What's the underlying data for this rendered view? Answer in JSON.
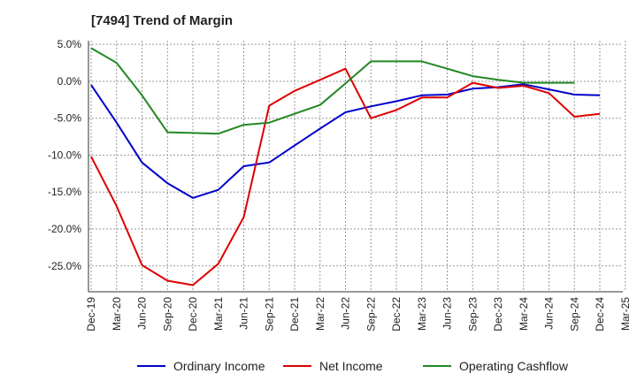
{
  "chart_data": {
    "type": "line",
    "title": "[7494]  Trend of Margin",
    "xlabel": "",
    "ylabel": "",
    "x": [
      "Dec-19",
      "Mar-20",
      "Jun-20",
      "Sep-20",
      "Dec-20",
      "Mar-21",
      "Jun-21",
      "Sep-21",
      "Dec-21",
      "Mar-22",
      "Jun-22",
      "Sep-22",
      "Dec-22",
      "Mar-23",
      "Jun-23",
      "Sep-23",
      "Dec-23",
      "Mar-24",
      "Jun-24",
      "Sep-24",
      "Dec-24",
      "Mar-25"
    ],
    "ylim": [
      -28.5,
      5.5
    ],
    "yticks": [
      5,
      0,
      -5,
      -10,
      -15,
      -20,
      -25
    ],
    "ytick_labels": [
      "5.0%",
      "0.0%",
      "-5.0%",
      "-10.0%",
      "-15.0%",
      "-20.0%",
      "-25.0%"
    ],
    "grid": true,
    "legend_position": "bottom",
    "series": [
      {
        "name": "Ordinary Income",
        "color": "#0000cc",
        "values": [
          -0.5,
          -5.6,
          -11.0,
          -13.8,
          -15.8,
          -14.7,
          -11.5,
          -11.0,
          -8.7,
          -6.4,
          -4.2,
          -3.4,
          -2.7,
          -1.9,
          -1.8,
          -1.0,
          -0.8,
          -0.4,
          -1.1,
          -1.8,
          -1.9,
          null
        ]
      },
      {
        "name": "Net Income",
        "color": "#dd0000",
        "values": [
          -10.2,
          -16.9,
          -24.9,
          -27.0,
          -27.6,
          -24.7,
          -18.4,
          -3.3,
          -1.3,
          0.2,
          1.7,
          -5.0,
          -3.9,
          -2.2,
          -2.2,
          -0.2,
          -0.9,
          -0.6,
          -1.6,
          -4.8,
          -4.4,
          null
        ]
      },
      {
        "name": "Operating Cashflow",
        "color": "#228822",
        "values": [
          4.5,
          2.5,
          -1.9,
          -6.9,
          -7.0,
          -7.1,
          -5.9,
          -5.6,
          -4.4,
          -3.2,
          -0.3,
          2.7,
          2.7,
          2.7,
          1.7,
          0.7,
          0.2,
          -0.2,
          -0.2,
          -0.2,
          null,
          null
        ]
      }
    ]
  }
}
